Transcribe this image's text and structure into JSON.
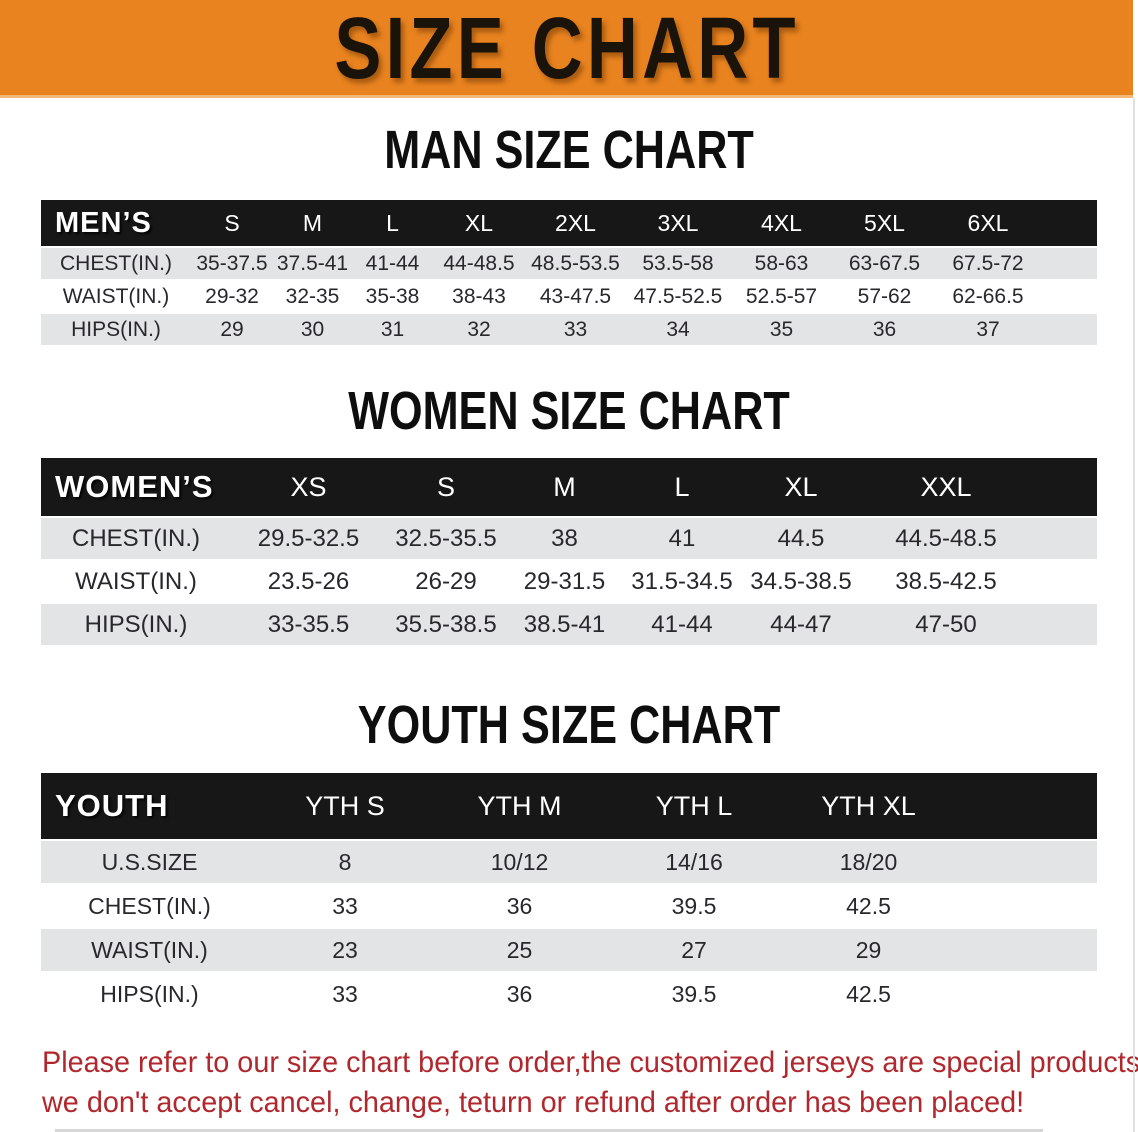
{
  "banner": {
    "title": "SIZE CHART",
    "bg_color": "#e8831f",
    "text_color": "#19130a"
  },
  "colors": {
    "table_header_bar": "#171717",
    "row_stripe": "#e3e4e6",
    "footer_text": "#b0282d"
  },
  "sections": [
    {
      "heading": "MAN SIZE CHART",
      "corner_label": "MEN’S",
      "columns": [
        "S",
        "M",
        "L",
        "XL",
        "2XL",
        "3XL",
        "4XL",
        "5XL",
        "6XL"
      ],
      "rows": [
        {
          "label": "CHEST(IN.)",
          "values": [
            "35-37.5",
            "37.5-41",
            "41-44",
            "44-48.5",
            "48.5-53.5",
            "53.5-58",
            "58-63",
            "63-67.5",
            "67.5-72"
          ]
        },
        {
          "label": "WAIST(IN.)",
          "values": [
            "29-32",
            "32-35",
            "35-38",
            "38-43",
            "43-47.5",
            "47.5-52.5",
            "52.5-57",
            "57-62",
            "62-66.5"
          ]
        },
        {
          "label": "HIPS(IN.)",
          "values": [
            "29",
            "30",
            "31",
            "32",
            "33",
            "34",
            "35",
            "36",
            "37"
          ]
        }
      ]
    },
    {
      "heading": "WOMEN SIZE CHART",
      "corner_label": "WOMEN’S",
      "columns": [
        "XS",
        "S",
        "M",
        "L",
        "XL",
        "XXL"
      ],
      "rows": [
        {
          "label": "CHEST(IN.)",
          "values": [
            "29.5-32.5",
            "32.5-35.5",
            "38",
            "41",
            "44.5",
            "44.5-48.5"
          ]
        },
        {
          "label": "WAIST(IN.)",
          "values": [
            "23.5-26",
            "26-29",
            "29-31.5",
            "31.5-34.5",
            "34.5-38.5",
            "38.5-42.5"
          ]
        },
        {
          "label": "HIPS(IN.)",
          "values": [
            "33-35.5",
            "35.5-38.5",
            "38.5-41",
            "41-44",
            "44-47",
            "47-50"
          ]
        }
      ]
    },
    {
      "heading": "YOUTH SIZE CHART",
      "corner_label": "YOUTH",
      "columns": [
        "YTH S",
        "YTH M",
        "YTH L",
        "YTH XL"
      ],
      "rows": [
        {
          "label": "U.S.SIZE",
          "values": [
            "8",
            "10/12",
            "14/16",
            "18/20"
          ]
        },
        {
          "label": "CHEST(IN.)",
          "values": [
            "33",
            "36",
            "39.5",
            "42.5"
          ]
        },
        {
          "label": "WAIST(IN.)",
          "values": [
            "23",
            "25",
            "27",
            "29"
          ]
        },
        {
          "label": "HIPS(IN.)",
          "values": [
            "33",
            "36",
            "39.5",
            "42.5"
          ]
        }
      ]
    }
  ],
  "footer_note": {
    "line1": "Please refer to our size chart before order,the customized jerseys are special products,",
    "line2": "we don't accept cancel, change, teturn or refund after order has been placed!"
  }
}
